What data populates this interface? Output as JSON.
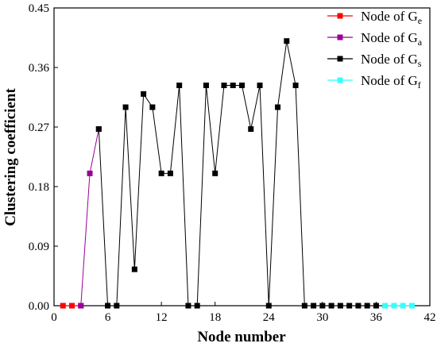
{
  "chart_data": {
    "type": "line",
    "xlabel": "Node number",
    "ylabel": "Clustering coefficient",
    "xlim": [
      0,
      42
    ],
    "ylim": [
      0,
      0.45
    ],
    "xticks": [
      "0",
      "6",
      "12",
      "18",
      "24",
      "30",
      "36",
      "42"
    ],
    "yticks": [
      "0.00",
      "0.09",
      "0.18",
      "0.27",
      "0.36",
      "0.45"
    ],
    "legend_position": "top-right",
    "grid": false,
    "series": [
      {
        "name_prefix": "Node of G",
        "name_sub": "e",
        "color": "#ff0000",
        "x": [
          1,
          2,
          3
        ],
        "y": [
          0,
          0,
          0
        ]
      },
      {
        "name_prefix": "Node of G",
        "name_sub": "a",
        "color": "#990099",
        "x": [
          3,
          4,
          5
        ],
        "y": [
          0,
          0.2,
          0.267
        ]
      },
      {
        "name_prefix": "Node of G",
        "name_sub": "s",
        "color": "#000000",
        "x": [
          5,
          6,
          7,
          8,
          9,
          10,
          11,
          12,
          13,
          14,
          15,
          16,
          17,
          18,
          19,
          20,
          21,
          22,
          23,
          24,
          25,
          26,
          27,
          28,
          29,
          30,
          31,
          32,
          33,
          34,
          35,
          36
        ],
        "y": [
          0.267,
          0,
          0,
          0.3,
          0.055,
          0.32,
          0.3,
          0.2,
          0.2,
          0.333,
          0,
          0,
          0.333,
          0.2,
          0.333,
          0.333,
          0.333,
          0.267,
          0.333,
          0,
          0.3,
          0.4,
          0.333,
          0,
          0,
          0,
          0,
          0,
          0,
          0,
          0,
          0
        ]
      },
      {
        "name_prefix": "Node of G",
        "name_sub": "f",
        "color": "#33ffff",
        "x": [
          37,
          38,
          39,
          40
        ],
        "y": [
          0,
          0,
          0,
          0
        ]
      }
    ]
  }
}
